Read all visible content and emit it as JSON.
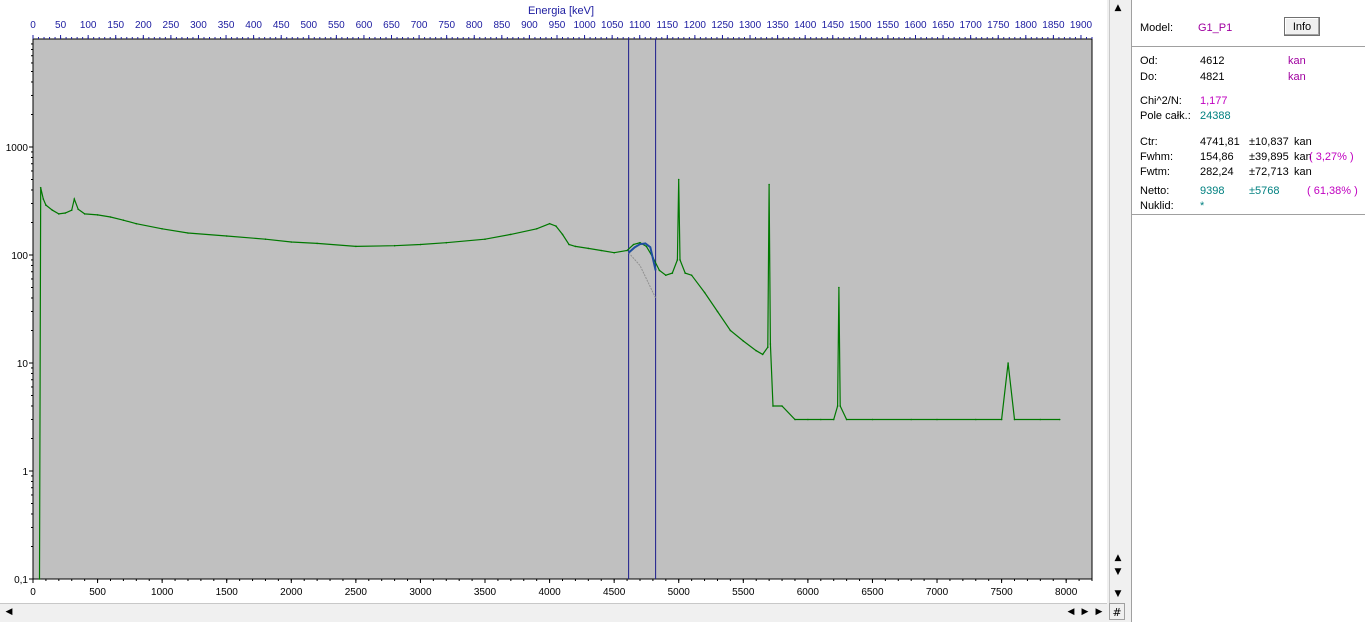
{
  "chart_data": {
    "type": "line",
    "title": "",
    "x2label": "Energia [keV]",
    "xlabel": "",
    "ylabel": "",
    "xlim": [
      0,
      8200
    ],
    "x2lim": [
      0,
      1920
    ],
    "ylim": [
      0.1,
      10000
    ],
    "yscale": "log",
    "xticks": [
      0,
      500,
      1000,
      1500,
      2000,
      2500,
      3000,
      3500,
      4000,
      4500,
      5000,
      5500,
      6000,
      6500,
      7000,
      7500,
      8000
    ],
    "x2ticks": [
      0,
      50,
      100,
      150,
      200,
      250,
      300,
      350,
      400,
      450,
      500,
      550,
      600,
      650,
      700,
      750,
      800,
      850,
      900,
      950,
      1000,
      1050,
      1100,
      1150,
      1200,
      1250,
      1300,
      1350,
      1400,
      1450,
      1500,
      1550,
      1600,
      1650,
      1700,
      1750,
      1800,
      1850,
      1900
    ],
    "yticks": [
      0.1,
      1,
      10,
      100,
      1000
    ],
    "ytick_labels": [
      "0,1",
      "1",
      "10",
      "100",
      "1000"
    ],
    "grid": false,
    "colors": {
      "spectrum": "#007800",
      "roi_lines": "#1c1c8c",
      "fit": "#1f4fa0",
      "background_fit": "#909090",
      "plot_bg": "#c0c0c0",
      "axis_label": "#1c1ca0"
    },
    "series": [
      {
        "name": "",
        "x": [
          50,
          60,
          80,
          100,
          150,
          200,
          250,
          300,
          320,
          350,
          400,
          500,
          600,
          700,
          800,
          1000,
          1200,
          1500,
          1800,
          2000,
          2200,
          2500,
          2800,
          3000,
          3200,
          3500,
          3700,
          3900,
          4000,
          4050,
          4100,
          4150,
          4200,
          4300,
          4400,
          4500,
          4600,
          4650,
          4700,
          4750,
          4800,
          4850,
          4900,
          4950,
          4990,
          5000,
          5010,
          5050,
          5100,
          5200,
          5300,
          5400,
          5500,
          5600,
          5650,
          5690,
          5700,
          5710,
          5730,
          5800,
          5900,
          6000,
          6100,
          6200,
          6230,
          6240,
          6250,
          6300,
          6500,
          6800,
          7000,
          7300,
          7500,
          7550,
          7600,
          7800,
          7950
        ],
        "y": [
          0.1,
          420,
          330,
          290,
          260,
          240,
          245,
          260,
          330,
          265,
          240,
          235,
          225,
          210,
          195,
          175,
          160,
          150,
          140,
          132,
          128,
          120,
          122,
          125,
          130,
          140,
          155,
          175,
          195,
          185,
          155,
          125,
          120,
          115,
          110,
          105,
          110,
          125,
          130,
          120,
          95,
          72,
          65,
          68,
          90,
          500,
          90,
          68,
          65,
          45,
          30,
          20,
          16,
          13,
          12,
          14,
          450,
          15,
          4,
          4,
          3,
          3,
          3,
          3,
          4,
          50,
          4,
          3,
          3,
          3,
          3,
          3,
          3,
          10,
          3,
          3,
          3
        ]
      }
    ],
    "roi": {
      "from": 4612,
      "to": 4821
    },
    "fit": {
      "x": [
        4612,
        4660,
        4700,
        4741.81,
        4780,
        4821
      ],
      "y": [
        105,
        118,
        126,
        128,
        118,
        72
      ]
    },
    "background_fit": {
      "x": [
        4612,
        4700,
        4821
      ],
      "y": [
        105,
        80,
        40
      ]
    }
  },
  "panel": {
    "model_label": "Model:",
    "model_value": "G1_P1",
    "info_button": "Info",
    "od_label": "Od:",
    "od_value": "4612",
    "od_unit": "kan",
    "do_label": "Do:",
    "do_value": "4821",
    "do_unit": "kan",
    "chi_label": "Chi^2/N:",
    "chi_value": "1,177",
    "pole_label": "Pole całk.:",
    "pole_value": "24388",
    "ctr_label": "Ctr:",
    "ctr_value": "4741,81",
    "ctr_err": "±10,837",
    "ctr_unit": "kan",
    "fwhm_label": "Fwhm:",
    "fwhm_value": "154,86",
    "fwhm_err": "±39,895",
    "fwhm_unit": "kan",
    "fwhm_pct": "( 3,27% )",
    "fwtm_label": "Fwtm:",
    "fwtm_value": "282,24",
    "fwtm_err": "±72,713",
    "fwtm_unit": "kan",
    "netto_label": "Netto:",
    "netto_value": "9398",
    "netto_err": "±5768",
    "netto_pct": "( 61,38% )",
    "nuklid_label": "Nuklid:",
    "nuklid_value": "*",
    "colors": {
      "unit": "#a000a0",
      "stat": "#c000c0",
      "teal": "#008080",
      "text": "#000000"
    }
  }
}
